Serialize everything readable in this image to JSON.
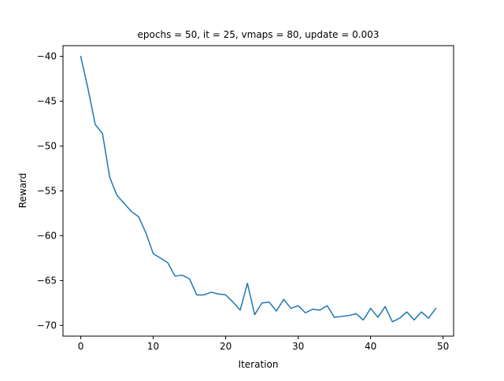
{
  "chart_data": {
    "type": "line",
    "title": "epochs = 50, it = 25, vmaps = 80, update = 0.003",
    "xlabel": "Iteration",
    "ylabel": "Reward",
    "xlim": [
      -2.45,
      51.45
    ],
    "ylim": [
      -71.2,
      -38.8
    ],
    "xticks": [
      0,
      10,
      20,
      30,
      40,
      50
    ],
    "xtick_labels": [
      "0",
      "10",
      "20",
      "30",
      "40",
      "50"
    ],
    "yticks": [
      -40,
      -45,
      -50,
      -55,
      -60,
      -65,
      -70
    ],
    "ytick_labels": [
      "−40",
      "−45",
      "−50",
      "−55",
      "−60",
      "−65",
      "−70"
    ],
    "grid": false,
    "line_color": "#1f77b4",
    "series": [
      {
        "x": [
          0,
          1,
          2,
          3,
          4,
          5,
          6,
          7,
          8,
          9,
          10,
          11,
          12,
          13,
          14,
          15,
          16,
          17,
          18,
          19,
          20,
          21,
          22,
          23,
          24,
          25,
          26,
          27,
          28,
          29,
          30,
          31,
          32,
          33,
          34,
          35,
          36,
          37,
          38,
          39,
          40,
          41,
          42,
          43,
          44,
          45,
          46,
          47,
          48,
          49
        ],
        "values": [
          -40.0,
          -43.6,
          -47.6,
          -48.6,
          -53.5,
          -55.5,
          -56.4,
          -57.3,
          -57.9,
          -59.7,
          -62.0,
          -62.5,
          -63.0,
          -64.5,
          -64.4,
          -64.8,
          -66.6,
          -66.6,
          -66.3,
          -66.5,
          -66.6,
          -67.4,
          -68.3,
          -65.3,
          -68.8,
          -67.5,
          -67.4,
          -68.4,
          -67.1,
          -68.1,
          -67.8,
          -68.6,
          -68.2,
          -68.3,
          -67.8,
          -69.1,
          -69.0,
          -68.9,
          -68.7,
          -69.4,
          -68.1,
          -69.1,
          -67.9,
          -69.6,
          -69.2,
          -68.5,
          -69.4,
          -68.5,
          -69.2,
          -68.1
        ]
      }
    ]
  }
}
